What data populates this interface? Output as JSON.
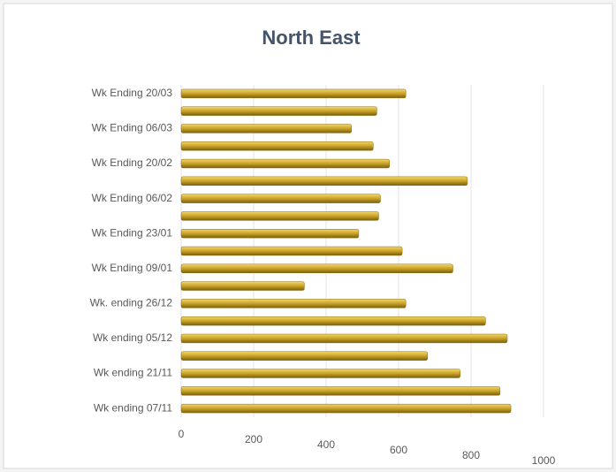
{
  "chart_data": {
    "type": "bar",
    "orientation": "horizontal",
    "title": "North East",
    "categories": [
      "Wk Ending 20/03",
      null,
      "Wk Ending 06/03",
      null,
      "Wk Ending 20/02",
      null,
      "Wk Ending 06/02",
      null,
      "Wk Ending 23/01",
      null,
      "Wk Ending 09/01",
      null,
      "Wk. ending 26/12",
      null,
      "Wk ending 05/12",
      null,
      "Wk ending 21/11",
      null,
      "Wk ending 07/11"
    ],
    "values": [
      620,
      540,
      470,
      530,
      575,
      790,
      550,
      545,
      490,
      610,
      750,
      340,
      620,
      840,
      900,
      680,
      770,
      880,
      910
    ],
    "color": "#c9a227",
    "xlim": [
      0,
      1000
    ],
    "xticks": [
      0,
      200,
      400,
      600,
      800,
      1000
    ],
    "grid": true
  }
}
